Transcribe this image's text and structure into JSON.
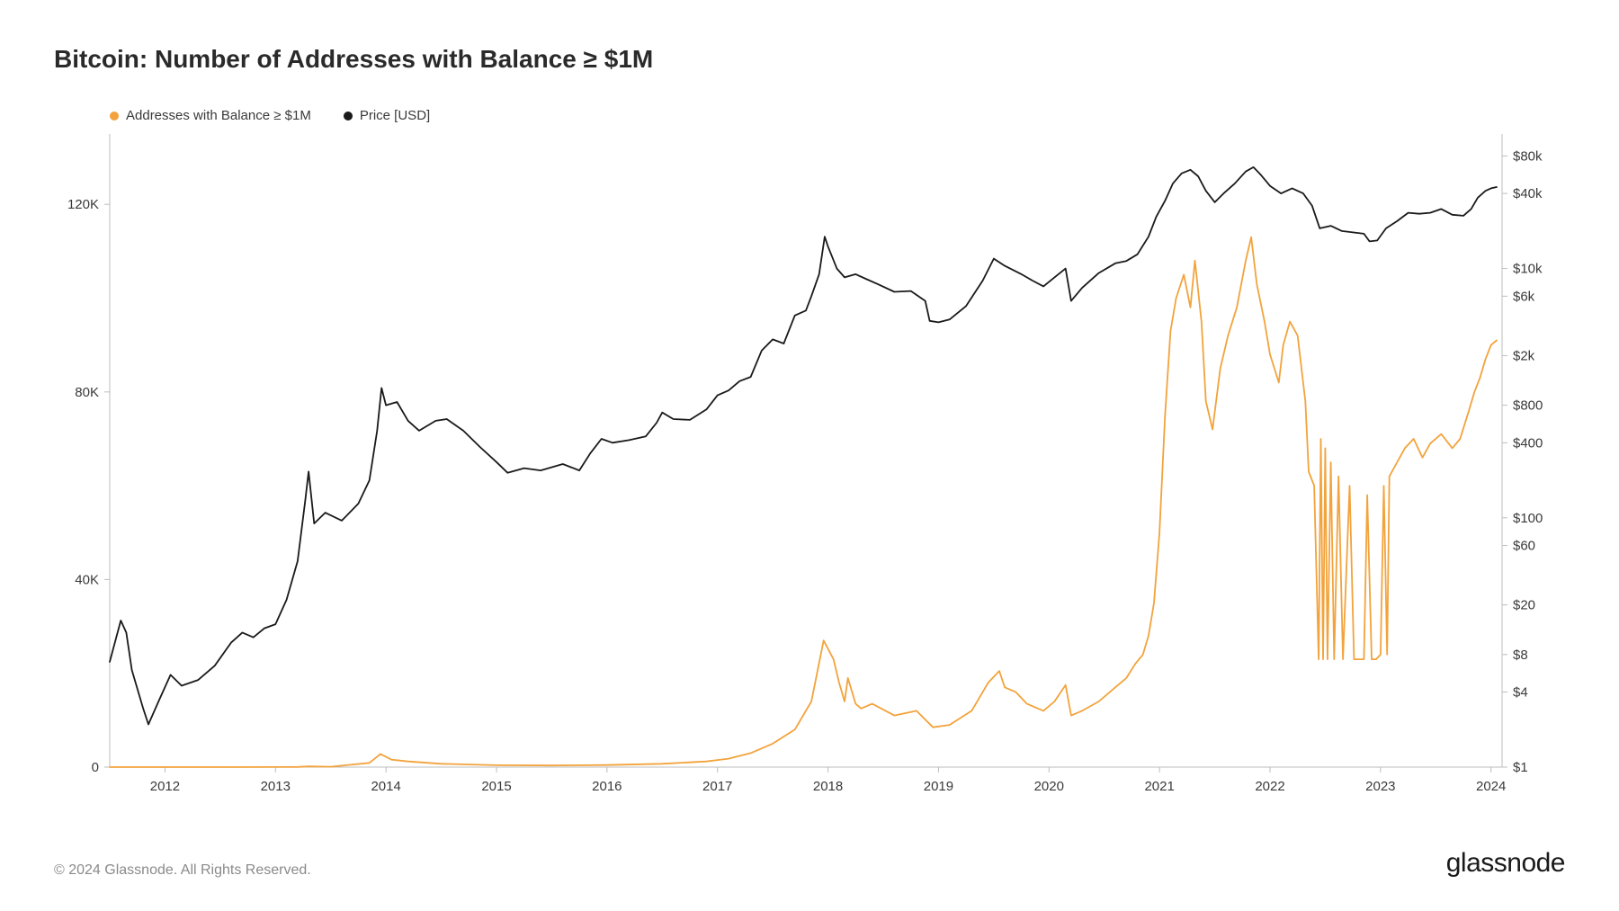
{
  "title": "Bitcoin: Number of Addresses with Balance ≥ $1M",
  "legend": {
    "series1": {
      "label": "Addresses with Balance ≥ $1M",
      "color": "#f2a33c"
    },
    "series2": {
      "label": "Price [USD]",
      "color": "#1a1a1a"
    }
  },
  "footer": {
    "copyright": "© 2024 Glassnode. All Rights Reserved.",
    "brand": "glassnode"
  },
  "chart": {
    "type": "dual-axis-line",
    "background_color": "#ffffff",
    "axis_color": "#bdbdbd",
    "tick_color": "#3a3a3a",
    "tick_fontsize": 15,
    "line_width": 1.8,
    "x": {
      "min": 2011.5,
      "max": 2024.1,
      "ticks": [
        2012,
        2013,
        2014,
        2015,
        2016,
        2017,
        2018,
        2019,
        2020,
        2021,
        2022,
        2023,
        2024
      ],
      "tick_labels": [
        "2012",
        "2013",
        "2014",
        "2015",
        "2016",
        "2017",
        "2018",
        "2019",
        "2020",
        "2021",
        "2022",
        "2023",
        "2024"
      ]
    },
    "y_left": {
      "type": "linear",
      "min": 0,
      "max": 135000,
      "ticks": [
        0,
        40000,
        80000,
        120000
      ],
      "tick_labels": [
        "0",
        "40K",
        "80K",
        "120K"
      ]
    },
    "y_right": {
      "type": "log",
      "min": 1,
      "max": 120000,
      "ticks": [
        1,
        4,
        8,
        20,
        60,
        100,
        400,
        800,
        2000,
        6000,
        10000,
        40000,
        80000
      ],
      "tick_labels": [
        "$1",
        "$4",
        "$8",
        "$20",
        "$60",
        "$100",
        "$400",
        "$800",
        "$2k",
        "$6k",
        "$10k",
        "$40k",
        "$80k"
      ]
    },
    "series_addresses": {
      "color": "#f2a33c",
      "axis": "left",
      "points": [
        [
          2011.5,
          5
        ],
        [
          2012.0,
          5
        ],
        [
          2012.5,
          5
        ],
        [
          2013.0,
          20
        ],
        [
          2013.2,
          40
        ],
        [
          2013.3,
          150
        ],
        [
          2013.5,
          80
        ],
        [
          2013.85,
          900
        ],
        [
          2013.95,
          2800
        ],
        [
          2014.05,
          1600
        ],
        [
          2014.2,
          1200
        ],
        [
          2014.5,
          700
        ],
        [
          2015.0,
          400
        ],
        [
          2015.5,
          350
        ],
        [
          2016.0,
          450
        ],
        [
          2016.5,
          700
        ],
        [
          2016.9,
          1200
        ],
        [
          2017.1,
          1800
        ],
        [
          2017.3,
          3000
        ],
        [
          2017.5,
          5000
        ],
        [
          2017.7,
          8000
        ],
        [
          2017.85,
          14000
        ],
        [
          2017.96,
          27000
        ],
        [
          2018.05,
          23000
        ],
        [
          2018.1,
          18000
        ],
        [
          2018.15,
          14000
        ],
        [
          2018.18,
          19000
        ],
        [
          2018.25,
          13500
        ],
        [
          2018.3,
          12500
        ],
        [
          2018.4,
          13500
        ],
        [
          2018.6,
          11000
        ],
        [
          2018.8,
          12000
        ],
        [
          2018.95,
          8500
        ],
        [
          2019.1,
          9000
        ],
        [
          2019.3,
          12000
        ],
        [
          2019.45,
          18000
        ],
        [
          2019.55,
          20500
        ],
        [
          2019.6,
          17000
        ],
        [
          2019.7,
          16000
        ],
        [
          2019.8,
          13500
        ],
        [
          2019.95,
          12000
        ],
        [
          2020.05,
          14000
        ],
        [
          2020.15,
          17500
        ],
        [
          2020.2,
          11000
        ],
        [
          2020.3,
          12000
        ],
        [
          2020.45,
          14000
        ],
        [
          2020.6,
          17000
        ],
        [
          2020.7,
          19000
        ],
        [
          2020.78,
          22000
        ],
        [
          2020.85,
          24000
        ],
        [
          2020.9,
          28000
        ],
        [
          2020.95,
          35000
        ],
        [
          2021.0,
          50000
        ],
        [
          2021.05,
          75000
        ],
        [
          2021.1,
          93000
        ],
        [
          2021.15,
          100000
        ],
        [
          2021.22,
          105000
        ],
        [
          2021.28,
          98000
        ],
        [
          2021.32,
          108000
        ],
        [
          2021.38,
          95000
        ],
        [
          2021.42,
          78000
        ],
        [
          2021.48,
          72000
        ],
        [
          2021.55,
          85000
        ],
        [
          2021.62,
          92000
        ],
        [
          2021.7,
          98000
        ],
        [
          2021.78,
          108000
        ],
        [
          2021.83,
          113000
        ],
        [
          2021.88,
          103000
        ],
        [
          2021.95,
          95000
        ],
        [
          2022.0,
          88000
        ],
        [
          2022.08,
          82000
        ],
        [
          2022.12,
          90000
        ],
        [
          2022.18,
          95000
        ],
        [
          2022.25,
          92000
        ],
        [
          2022.32,
          78000
        ],
        [
          2022.35,
          63000
        ],
        [
          2022.4,
          60000
        ],
        [
          2022.44,
          23000
        ],
        [
          2022.46,
          70000
        ],
        [
          2022.48,
          23000
        ],
        [
          2022.5,
          68000
        ],
        [
          2022.52,
          23000
        ],
        [
          2022.55,
          65000
        ],
        [
          2022.58,
          23000
        ],
        [
          2022.62,
          62000
        ],
        [
          2022.66,
          23000
        ],
        [
          2022.72,
          60000
        ],
        [
          2022.76,
          23000
        ],
        [
          2022.8,
          23000
        ],
        [
          2022.85,
          23000
        ],
        [
          2022.88,
          58000
        ],
        [
          2022.92,
          23000
        ],
        [
          2022.96,
          23000
        ],
        [
          2023.0,
          24000
        ],
        [
          2023.03,
          60000
        ],
        [
          2023.06,
          24000
        ],
        [
          2023.08,
          62000
        ],
        [
          2023.15,
          65000
        ],
        [
          2023.22,
          68000
        ],
        [
          2023.3,
          70000
        ],
        [
          2023.38,
          66000
        ],
        [
          2023.45,
          69000
        ],
        [
          2023.55,
          71000
        ],
        [
          2023.65,
          68000
        ],
        [
          2023.72,
          70000
        ],
        [
          2023.8,
          76000
        ],
        [
          2023.85,
          80000
        ],
        [
          2023.9,
          83000
        ],
        [
          2023.95,
          87000
        ],
        [
          2024.0,
          90000
        ],
        [
          2024.05,
          91000
        ]
      ]
    },
    "series_price": {
      "color": "#1a1a1a",
      "axis": "right",
      "points": [
        [
          2011.5,
          7
        ],
        [
          2011.6,
          15
        ],
        [
          2011.65,
          12
        ],
        [
          2011.7,
          6
        ],
        [
          2011.8,
          3
        ],
        [
          2011.85,
          2.2
        ],
        [
          2011.95,
          3.5
        ],
        [
          2012.05,
          5.5
        ],
        [
          2012.15,
          4.5
        ],
        [
          2012.3,
          5
        ],
        [
          2012.45,
          6.5
        ],
        [
          2012.6,
          10
        ],
        [
          2012.7,
          12
        ],
        [
          2012.8,
          11
        ],
        [
          2012.9,
          13
        ],
        [
          2013.0,
          14
        ],
        [
          2013.1,
          22
        ],
        [
          2013.2,
          45
        ],
        [
          2013.27,
          140
        ],
        [
          2013.3,
          235
        ],
        [
          2013.35,
          90
        ],
        [
          2013.45,
          110
        ],
        [
          2013.6,
          95
        ],
        [
          2013.75,
          130
        ],
        [
          2013.85,
          200
        ],
        [
          2013.92,
          500
        ],
        [
          2013.96,
          1100
        ],
        [
          2014.0,
          800
        ],
        [
          2014.1,
          850
        ],
        [
          2014.2,
          600
        ],
        [
          2014.3,
          500
        ],
        [
          2014.45,
          600
        ],
        [
          2014.55,
          620
        ],
        [
          2014.7,
          500
        ],
        [
          2014.85,
          370
        ],
        [
          2015.0,
          280
        ],
        [
          2015.1,
          230
        ],
        [
          2015.25,
          250
        ],
        [
          2015.4,
          240
        ],
        [
          2015.6,
          270
        ],
        [
          2015.75,
          240
        ],
        [
          2015.85,
          330
        ],
        [
          2015.95,
          430
        ],
        [
          2016.05,
          400
        ],
        [
          2016.2,
          420
        ],
        [
          2016.35,
          450
        ],
        [
          2016.45,
          580
        ],
        [
          2016.5,
          700
        ],
        [
          2016.6,
          620
        ],
        [
          2016.75,
          610
        ],
        [
          2016.9,
          740
        ],
        [
          2017.0,
          960
        ],
        [
          2017.1,
          1050
        ],
        [
          2017.2,
          1250
        ],
        [
          2017.3,
          1350
        ],
        [
          2017.4,
          2200
        ],
        [
          2017.5,
          2700
        ],
        [
          2017.6,
          2500
        ],
        [
          2017.7,
          4200
        ],
        [
          2017.8,
          4600
        ],
        [
          2017.85,
          6000
        ],
        [
          2017.92,
          9000
        ],
        [
          2017.97,
          18000
        ],
        [
          2018.0,
          15000
        ],
        [
          2018.08,
          10000
        ],
        [
          2018.15,
          8500
        ],
        [
          2018.25,
          9000
        ],
        [
          2018.35,
          8200
        ],
        [
          2018.45,
          7500
        ],
        [
          2018.6,
          6500
        ],
        [
          2018.75,
          6600
        ],
        [
          2018.88,
          5500
        ],
        [
          2018.92,
          3800
        ],
        [
          2019.0,
          3700
        ],
        [
          2019.1,
          3900
        ],
        [
          2019.25,
          5000
        ],
        [
          2019.4,
          8000
        ],
        [
          2019.5,
          12000
        ],
        [
          2019.6,
          10500
        ],
        [
          2019.75,
          9000
        ],
        [
          2019.85,
          8000
        ],
        [
          2019.95,
          7200
        ],
        [
          2020.05,
          8500
        ],
        [
          2020.15,
          10000
        ],
        [
          2020.2,
          5500
        ],
        [
          2020.3,
          7000
        ],
        [
          2020.45,
          9200
        ],
        [
          2020.6,
          11000
        ],
        [
          2020.7,
          11500
        ],
        [
          2020.8,
          13000
        ],
        [
          2020.9,
          18000
        ],
        [
          2020.97,
          26000
        ],
        [
          2021.05,
          35000
        ],
        [
          2021.12,
          48000
        ],
        [
          2021.2,
          58000
        ],
        [
          2021.28,
          62000
        ],
        [
          2021.35,
          55000
        ],
        [
          2021.42,
          42000
        ],
        [
          2021.5,
          34000
        ],
        [
          2021.58,
          40000
        ],
        [
          2021.68,
          48000
        ],
        [
          2021.78,
          60000
        ],
        [
          2021.85,
          65000
        ],
        [
          2021.92,
          56000
        ],
        [
          2022.0,
          46000
        ],
        [
          2022.1,
          40000
        ],
        [
          2022.2,
          44000
        ],
        [
          2022.3,
          40000
        ],
        [
          2022.38,
          32000
        ],
        [
          2022.45,
          21000
        ],
        [
          2022.55,
          22000
        ],
        [
          2022.65,
          20000
        ],
        [
          2022.75,
          19500
        ],
        [
          2022.85,
          19000
        ],
        [
          2022.9,
          16500
        ],
        [
          2022.97,
          16800
        ],
        [
          2023.05,
          21000
        ],
        [
          2023.15,
          24000
        ],
        [
          2023.25,
          28000
        ],
        [
          2023.35,
          27500
        ],
        [
          2023.45,
          28000
        ],
        [
          2023.55,
          30000
        ],
        [
          2023.65,
          27000
        ],
        [
          2023.75,
          26500
        ],
        [
          2023.82,
          30000
        ],
        [
          2023.88,
          37000
        ],
        [
          2023.95,
          42000
        ],
        [
          2024.0,
          44000
        ],
        [
          2024.05,
          45000
        ]
      ]
    }
  }
}
